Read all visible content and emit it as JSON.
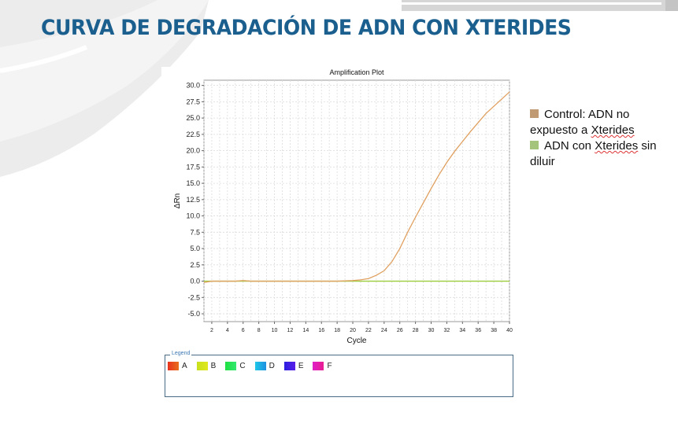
{
  "slide": {
    "title": "CURVA DE DEGRADACIÓN DE ADN CON XTERIDES"
  },
  "side_legend": {
    "items": [
      {
        "prefix": "Control: ADN no expuesto a ",
        "underlined": "Xterides",
        "suffix": "",
        "color": "#c09a72"
      },
      {
        "prefix": "ADN con ",
        "underlined": "Xterides",
        "suffix": " sin diluir",
        "color": "#a3c47a"
      }
    ]
  },
  "plot_legend": {
    "title": "Legend",
    "items": [
      {
        "label": "A",
        "from": "#e8321e",
        "to": "#e8701e"
      },
      {
        "label": "B",
        "from": "#c8e01e",
        "to": "#e0e81e"
      },
      {
        "label": "C",
        "from": "#1ee040",
        "to": "#32e870"
      },
      {
        "label": "D",
        "from": "#1ec8e8",
        "to": "#1e90e0"
      },
      {
        "label": "E",
        "from": "#2a1ee0",
        "to": "#5a1ee8"
      },
      {
        "label": "F",
        "from": "#e01ec8",
        "to": "#e81e90"
      }
    ]
  },
  "chart_data": {
    "type": "line",
    "title": "Amplification Plot",
    "xlabel": "Cycle",
    "ylabel": "ΔRn",
    "xlim": [
      1,
      40
    ],
    "ylim": [
      -6.2,
      30.8
    ],
    "xticks": [
      2,
      4,
      6,
      8,
      10,
      12,
      14,
      16,
      18,
      20,
      22,
      24,
      26,
      28,
      30,
      32,
      34,
      36,
      38,
      40
    ],
    "yticks": [
      30.0,
      27.5,
      25.0,
      22.5,
      20.0,
      17.5,
      15.0,
      12.5,
      10.0,
      7.5,
      5.0,
      2.5,
      0.0,
      -2.5,
      -5.0
    ],
    "grid": true,
    "x": [
      1,
      2,
      3,
      4,
      5,
      6,
      7,
      8,
      9,
      10,
      11,
      12,
      13,
      14,
      15,
      16,
      17,
      18,
      19,
      20,
      21,
      22,
      23,
      24,
      25,
      26,
      27,
      28,
      29,
      30,
      31,
      32,
      33,
      34,
      35,
      36,
      37,
      38,
      39,
      40
    ],
    "series": [
      {
        "name": "Control: ADN no expuesto a Xterides",
        "color": "#e0a060",
        "values": [
          -0.2,
          0,
          0,
          0,
          0,
          0.1,
          0,
          0,
          0,
          0,
          0,
          0,
          0,
          0,
          0,
          0,
          0,
          0,
          0.05,
          0.1,
          0.2,
          0.4,
          0.9,
          1.6,
          3.0,
          5.0,
          7.5,
          9.8,
          12.0,
          14.2,
          16.3,
          18.2,
          19.9,
          21.4,
          22.9,
          24.3,
          25.7,
          26.8,
          27.9,
          29.0
        ]
      },
      {
        "name": "ADN con Xterides sin diluir",
        "color": "#9ccc3c",
        "values": [
          0,
          0,
          0,
          0,
          0,
          0,
          0,
          0,
          0,
          0,
          0,
          0,
          0,
          0,
          0,
          0,
          0,
          0,
          0,
          0,
          0,
          0,
          0,
          0,
          0,
          0,
          0,
          0,
          0,
          0,
          0,
          0,
          0,
          0,
          0,
          0,
          0,
          0,
          0,
          0
        ]
      }
    ]
  }
}
